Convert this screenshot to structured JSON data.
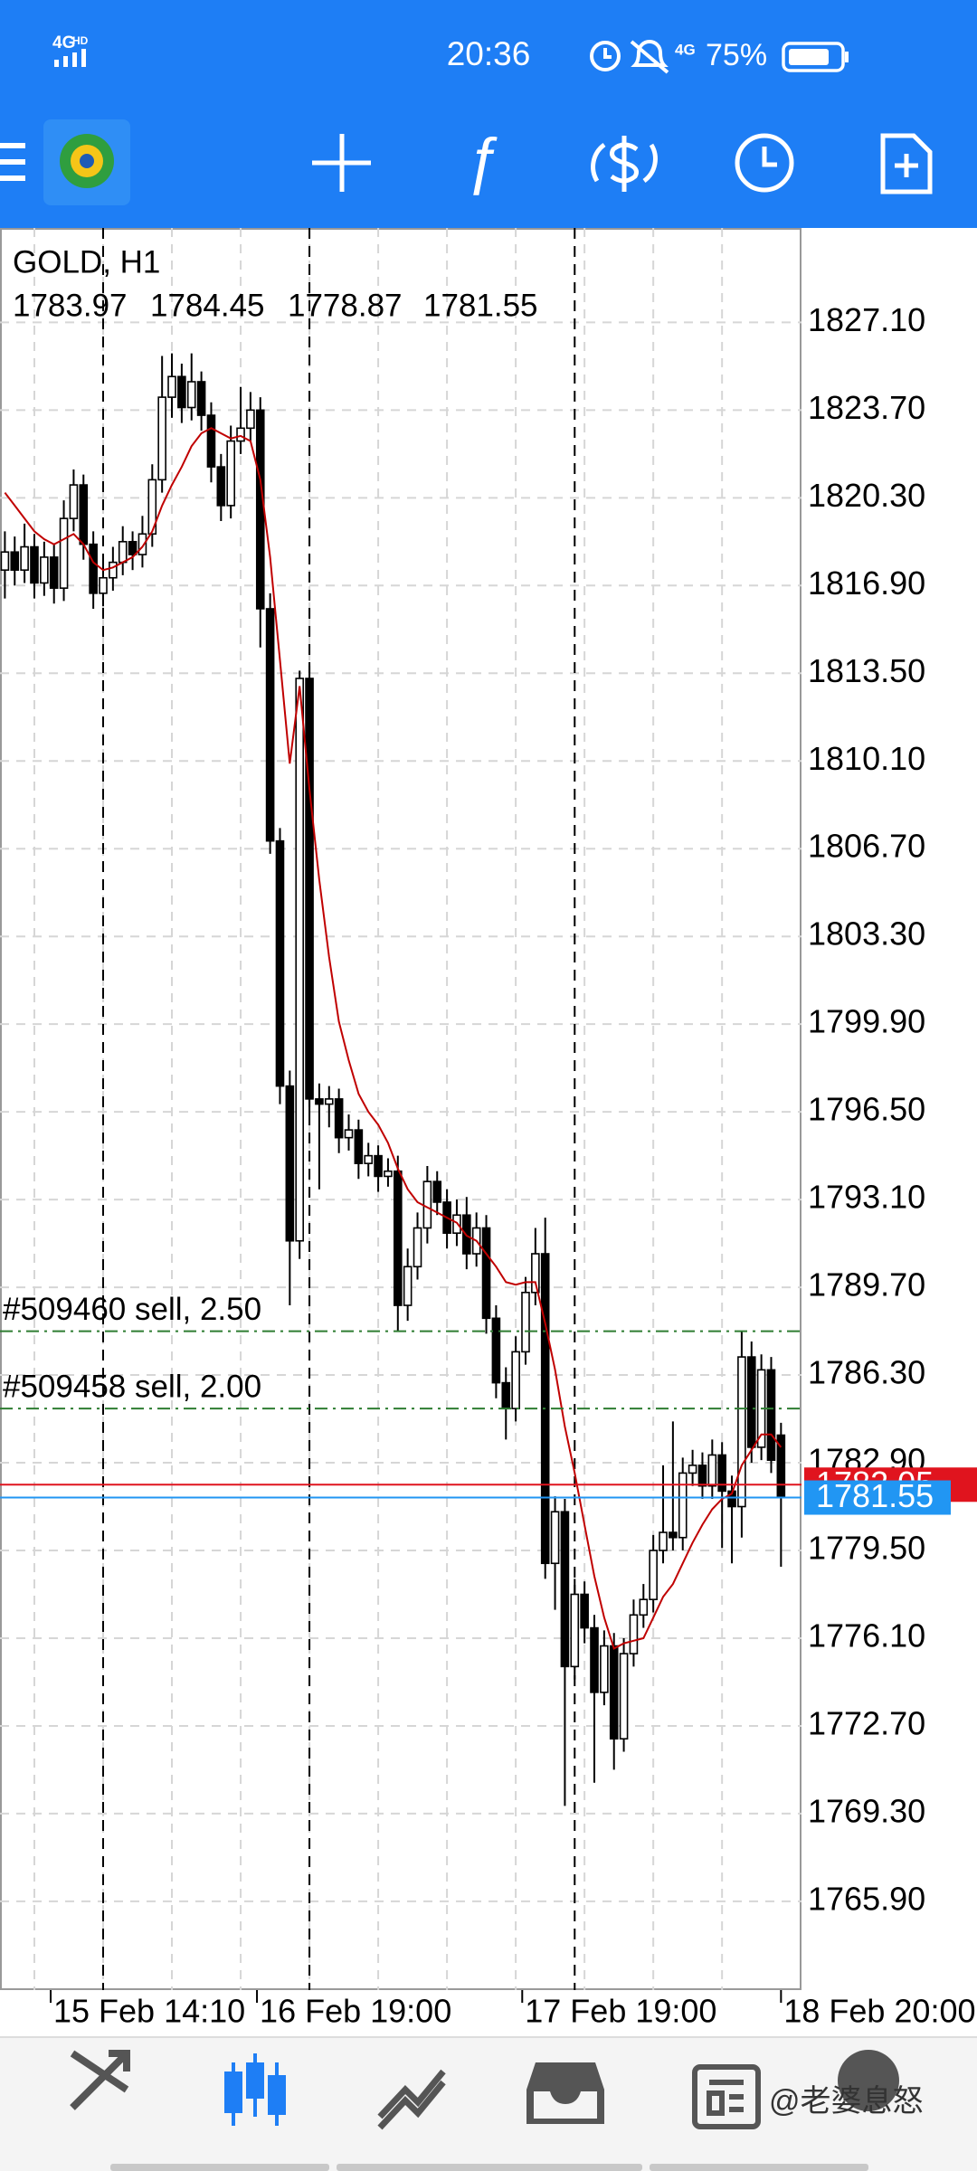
{
  "status_bar": {
    "network": "4G",
    "hd": "HD",
    "time": "20:36",
    "network_right": "4G",
    "battery": "75%"
  },
  "watermark": "@老婆息怒",
  "chart_data": {
    "type": "candlestick",
    "title": "GOLD, H1",
    "categories": [
      null,
      null,
      null,
      null,
      null,
      null,
      null,
      null,
      null,
      null,
      "15 Feb 14:10",
      null,
      null,
      null,
      null,
      null,
      null,
      null,
      null,
      null,
      null,
      null,
      null,
      null,
      null,
      null,
      null,
      null,
      null,
      null,
      null,
      "16 Feb 19:00",
      null,
      null,
      null,
      null,
      null,
      null,
      null,
      null,
      null,
      null,
      null,
      null,
      null,
      null,
      null,
      null,
      null,
      null,
      null,
      null,
      null,
      null,
      null,
      null,
      null,
      null,
      "17 Feb 19:00",
      null,
      null,
      null,
      null,
      null,
      null,
      null,
      null,
      null,
      null,
      null,
      null,
      null,
      null,
      null,
      null,
      null,
      null,
      null,
      null,
      "18 Feb 20:00"
    ],
    "open": [
      1817.5,
      1818.2,
      1817.5,
      1818.4,
      1817.0,
      1818.0,
      1816.8,
      1819.5,
      1820.8,
      1818.5,
      1816.6,
      1817.2,
      1817.8,
      1818.6,
      1818.1,
      1818.9,
      1821.0,
      1824.2,
      1825.0,
      1823.8,
      1824.8,
      1823.5,
      1821.5,
      1820.0,
      1822.5,
      1823.0,
      1823.7,
      1816.0,
      1807.0,
      1797.5,
      1791.5,
      1813.3,
      1797.0,
      1796.8,
      1797.0,
      1795.5,
      1795.8,
      1794.5,
      1794.8,
      1794.0,
      1794.2,
      1789.0,
      1790.5,
      1792.0,
      1793.8,
      1793.0,
      1791.8,
      1792.5,
      1791.0,
      1792.0,
      1788.5,
      1786.0,
      1785.0,
      1787.2,
      1789.5,
      1791.0,
      1779.0,
      1781.0,
      1775.0,
      1777.8,
      1776.5,
      1774.0,
      1775.8,
      1772.2,
      1775.5,
      1777.0,
      1777.6,
      1779.5,
      1780.2,
      1780.0,
      1782.5,
      1782.8,
      1782.0,
      1783.2,
      1781.8,
      1781.2,
      1787.0,
      1783.5,
      1786.5,
      1783.97
    ],
    "high": [
      1819.0,
      1818.8,
      1819.3,
      1818.9,
      1818.6,
      1818.5,
      1820.2,
      1821.4,
      1821.2,
      1819.0,
      1817.8,
      1818.4,
      1819.2,
      1819.0,
      1819.6,
      1821.6,
      1825.8,
      1825.9,
      1825.5,
      1825.9,
      1825.2,
      1824.0,
      1822.0,
      1823.1,
      1824.6,
      1824.4,
      1824.2,
      1816.6,
      1807.5,
      1798.1,
      1813.6,
      1813.8,
      1797.6,
      1797.5,
      1797.4,
      1796.4,
      1796.2,
      1795.3,
      1795.2,
      1794.7,
      1794.8,
      1791.2,
      1792.6,
      1794.4,
      1794.2,
      1793.5,
      1793.1,
      1793.2,
      1792.6,
      1792.5,
      1789.0,
      1786.6,
      1787.8,
      1790.1,
      1792.0,
      1792.4,
      1781.6,
      1781.5,
      1778.4,
      1778.3,
      1777.0,
      1776.4,
      1776.3,
      1776.1,
      1777.6,
      1778.2,
      1780.1,
      1782.8,
      1784.5,
      1783.1,
      1783.4,
      1783.3,
      1783.8,
      1783.7,
      1782.4,
      1788.0,
      1787.6,
      1787.1,
      1787.0,
      1784.45
    ],
    "low": [
      1816.4,
      1816.9,
      1817.0,
      1816.4,
      1816.5,
      1816.2,
      1816.3,
      1819.0,
      1817.9,
      1816.0,
      1816.1,
      1816.7,
      1817.3,
      1817.5,
      1817.6,
      1818.4,
      1820.5,
      1823.4,
      1823.2,
      1823.3,
      1822.9,
      1820.9,
      1819.4,
      1819.5,
      1822.0,
      1822.5,
      1814.5,
      1806.5,
      1796.8,
      1789.0,
      1790.8,
      1796.4,
      1793.5,
      1795.9,
      1794.9,
      1795.0,
      1793.9,
      1794.0,
      1793.4,
      1793.6,
      1788.0,
      1788.4,
      1790.0,
      1791.4,
      1792.5,
      1791.2,
      1791.3,
      1790.4,
      1790.5,
      1787.9,
      1785.4,
      1783.8,
      1784.5,
      1786.7,
      1789.0,
      1778.4,
      1777.2,
      1769.6,
      1774.5,
      1775.9,
      1770.5,
      1773.5,
      1771.0,
      1771.7,
      1775.0,
      1776.5,
      1777.1,
      1779.0,
      1779.5,
      1779.5,
      1782.0,
      1781.5,
      1781.5,
      1779.6,
      1779.0,
      1780.0,
      1782.9,
      1783.0,
      1782.5,
      1778.87
    ],
    "close": [
      1818.2,
      1817.5,
      1818.4,
      1817.0,
      1818.0,
      1816.8,
      1819.5,
      1820.8,
      1818.5,
      1816.6,
      1817.2,
      1817.8,
      1818.6,
      1818.1,
      1818.9,
      1821.0,
      1824.2,
      1825.0,
      1823.8,
      1824.8,
      1823.5,
      1821.5,
      1820.0,
      1822.5,
      1823.0,
      1823.7,
      1816.0,
      1807.0,
      1797.5,
      1791.5,
      1813.3,
      1797.0,
      1796.8,
      1797.0,
      1795.5,
      1795.8,
      1794.5,
      1794.8,
      1794.0,
      1794.2,
      1789.0,
      1790.5,
      1792.0,
      1793.8,
      1793.0,
      1791.8,
      1792.5,
      1791.0,
      1792.0,
      1788.5,
      1786.0,
      1785.0,
      1787.2,
      1789.5,
      1791.0,
      1779.0,
      1781.0,
      1775.0,
      1777.8,
      1776.5,
      1774.0,
      1775.8,
      1772.2,
      1775.5,
      1777.0,
      1777.6,
      1779.5,
      1780.2,
      1780.0,
      1782.5,
      1782.8,
      1782.0,
      1783.2,
      1781.8,
      1781.2,
      1787.0,
      1783.5,
      1786.5,
      1783.0,
      1781.55
    ],
    "colors": {
      "up": "#ffffff",
      "down": "#000000",
      "wick": "#000000"
    },
    "ma": {
      "color": "#c00000",
      "values": [
        1820.5,
        1820.0,
        1819.5,
        1819.0,
        1818.7,
        1818.5,
        1818.7,
        1818.9,
        1818.5,
        1817.8,
        1817.5,
        1817.6,
        1817.8,
        1818.0,
        1818.4,
        1819.0,
        1820.0,
        1820.8,
        1821.5,
        1822.3,
        1822.8,
        1823.0,
        1822.8,
        1822.6,
        1822.7,
        1822.5,
        1821.0,
        1818.0,
        1814.0,
        1810.0,
        1813.0,
        1809.0,
        1805.5,
        1802.5,
        1800.0,
        1798.5,
        1797.2,
        1796.5,
        1796.0,
        1795.3,
        1794.3,
        1793.5,
        1793.0,
        1792.8,
        1792.6,
        1792.4,
        1792.2,
        1791.7,
        1791.5,
        1791.0,
        1790.5,
        1789.9,
        1789.8,
        1789.9,
        1789.9,
        1788.3,
        1786.5,
        1784.3,
        1782.5,
        1780.5,
        1778.5,
        1776.9,
        1775.7,
        1775.9,
        1776.0,
        1776.1,
        1776.9,
        1777.7,
        1778.2,
        1779.0,
        1779.8,
        1780.5,
        1781.1,
        1781.5,
        1781.7,
        1782.8,
        1783.4,
        1784.0,
        1784.0,
        1783.5
      ]
    },
    "ylim": [
      1762.46,
      1830.76
    ],
    "yticks": [
      {
        "value": 1827.1,
        "label": "1827.10"
      },
      {
        "value": 1823.7,
        "label": "1823.70"
      },
      {
        "value": 1820.3,
        "label": "1820.30"
      },
      {
        "value": 1816.9,
        "label": "1816.90"
      },
      {
        "value": 1813.5,
        "label": "1813.50"
      },
      {
        "value": 1810.1,
        "label": "1810.10"
      },
      {
        "value": 1806.7,
        "label": "1806.70"
      },
      {
        "value": 1803.3,
        "label": "1803.30"
      },
      {
        "value": 1799.9,
        "label": "1799.90"
      },
      {
        "value": 1796.5,
        "label": "1796.50"
      },
      {
        "value": 1793.1,
        "label": "1793.10"
      },
      {
        "value": 1789.7,
        "label": "1789.70"
      },
      {
        "value": 1786.3,
        "label": "1786.30"
      },
      {
        "value": 1782.9,
        "label": "1782.90"
      },
      {
        "value": 1779.5,
        "label": "1779.50"
      },
      {
        "value": 1776.1,
        "label": "1776.10"
      },
      {
        "value": 1772.7,
        "label": "1772.70"
      },
      {
        "value": 1769.3,
        "label": "1769.30"
      },
      {
        "value": 1765.9,
        "label": "1765.90"
      }
    ],
    "grid": true,
    "orders": [
      {
        "label": "#509460 sell, 2.50",
        "price": 1788.0,
        "color": "#2e7d32"
      },
      {
        "label": "#509458 sell, 2.00",
        "price": 1785.0,
        "color": "#2e7d32"
      }
    ],
    "ask": {
      "value": 1782.05,
      "color": "#e0141e"
    },
    "bid": {
      "value": 1781.55,
      "color": "#2196f3"
    }
  }
}
